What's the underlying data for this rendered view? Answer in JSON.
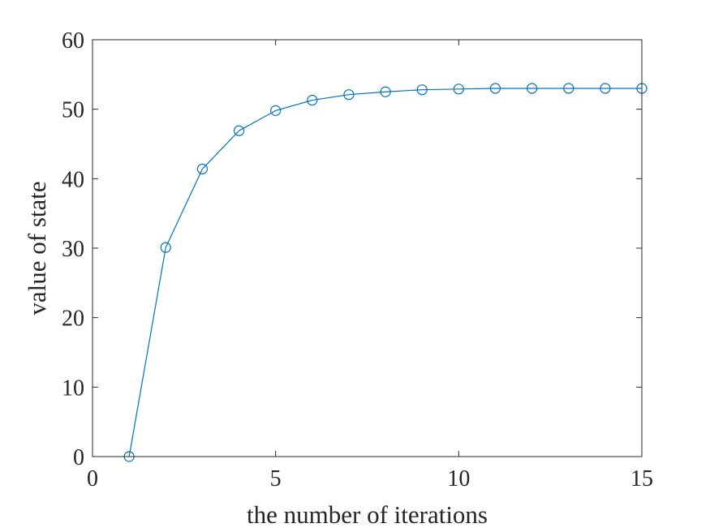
{
  "chart_data": {
    "type": "line",
    "title": "",
    "xlabel": "the number of iterations",
    "ylabel": "value of state",
    "xlim": [
      0,
      15
    ],
    "ylim": [
      0,
      60
    ],
    "xticks": [
      0,
      5,
      10,
      15
    ],
    "yticks": [
      0,
      10,
      20,
      30,
      40,
      50,
      60
    ],
    "grid": false,
    "marker": "circle",
    "series_color": "#0072BD",
    "series": [
      {
        "x": [
          1,
          2,
          3,
          4,
          5,
          6,
          7,
          8,
          9,
          10,
          11,
          12,
          13,
          14,
          15
        ],
        "y": [
          0,
          30.1,
          41.4,
          46.9,
          49.8,
          51.3,
          52.1,
          52.5,
          52.8,
          52.9,
          53.0,
          53.0,
          53.0,
          53.0,
          53.0
        ]
      }
    ]
  }
}
